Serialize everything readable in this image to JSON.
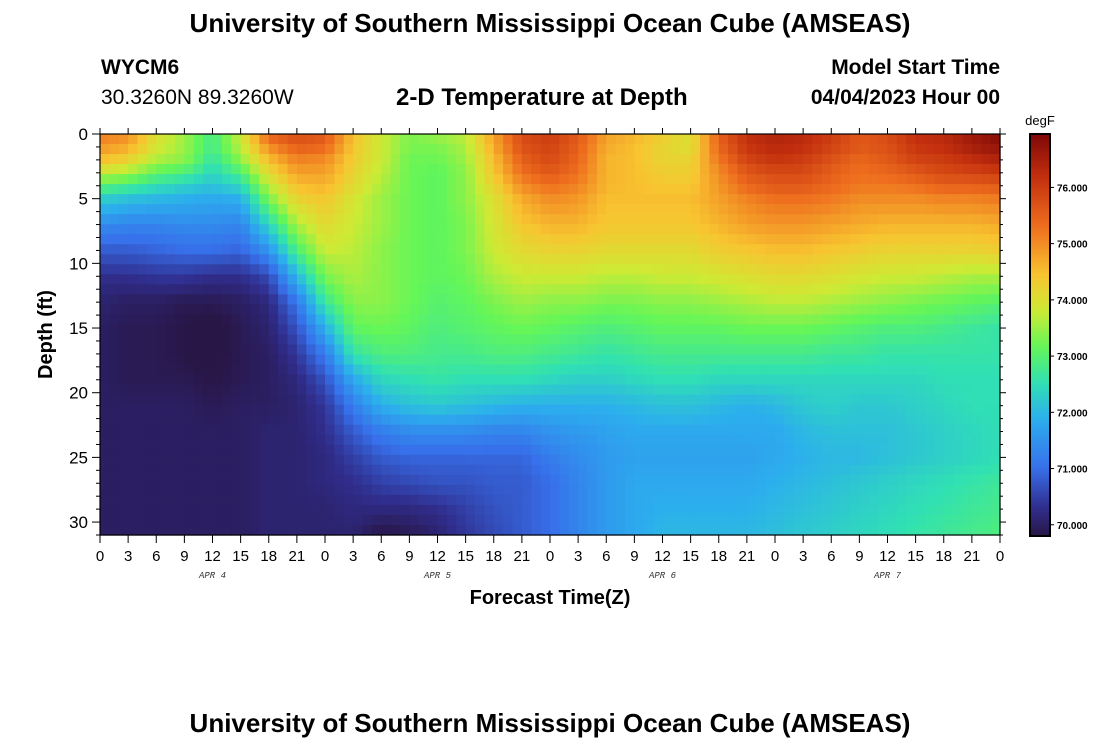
{
  "page": {
    "title_top": "University of Southern Mississippi Ocean Cube (AMSEAS)",
    "title_bottom": "University of Southern Mississippi Ocean Cube (AMSEAS)",
    "station_id": "WYCM6",
    "station_coords": "30.3260N  89.3260W",
    "subtitle": "2-D Temperature at Depth",
    "model_start_label": "Model Start Time",
    "model_start_value": "04/04/2023 Hour 00"
  },
  "chart_data": {
    "type": "heatmap",
    "title": "2-D Temperature at Depth",
    "xlabel": "Forecast Time(Z)",
    "ylabel": "Depth (ft)",
    "x_hours_range": [
      0,
      96
    ],
    "x_tick_labels": [
      "0",
      "3",
      "6",
      "9",
      "12",
      "15",
      "18",
      "21",
      "0",
      "3",
      "6",
      "9",
      "12",
      "15",
      "18",
      "21",
      "0",
      "3",
      "6",
      "9",
      "12",
      "15",
      "18",
      "21",
      "0",
      "3",
      "6",
      "9",
      "12",
      "15",
      "18",
      "21",
      "0"
    ],
    "day_labels": [
      "APR 4",
      "APR 5",
      "APR 6",
      "APR 7"
    ],
    "ylim": [
      0,
      31
    ],
    "y_ticks": [
      0,
      5,
      10,
      15,
      20,
      25,
      30
    ],
    "colorbar": {
      "unit": "degF",
      "range": [
        69.8,
        76.95
      ],
      "ticks": [
        "70.000",
        "71.000",
        "72.000",
        "73.000",
        "74.000",
        "75.000",
        "76.000"
      ]
    },
    "depths": [
      0,
      1,
      2,
      3,
      4,
      5,
      7,
      9,
      11,
      13,
      15,
      17,
      19,
      21,
      23,
      25,
      27,
      29,
      31
    ],
    "hours": [
      0,
      3,
      6,
      9,
      12,
      15,
      18,
      21,
      24,
      27,
      30,
      33,
      36,
      39,
      42,
      45,
      48,
      51,
      54,
      57,
      60,
      63,
      66,
      69,
      72,
      75,
      78,
      81,
      84,
      87,
      90,
      93,
      96
    ],
    "temperature": [
      [
        75.2,
        75.0,
        74.0,
        73.5,
        72.8,
        73.8,
        75.5,
        75.8,
        75.6,
        74.5,
        73.8,
        73.3,
        73.5,
        73.7,
        74.8,
        75.8,
        76.0,
        75.6,
        74.8,
        74.6,
        74.3,
        74.0,
        75.5,
        76.2,
        76.4,
        76.3,
        76.0,
        75.6,
        75.8,
        76.2,
        76.3,
        76.6,
        76.9
      ],
      [
        74.9,
        74.7,
        73.9,
        73.5,
        72.8,
        73.7,
        75.0,
        75.5,
        75.4,
        74.4,
        73.8,
        73.3,
        73.3,
        73.6,
        74.7,
        75.7,
        75.9,
        75.5,
        74.7,
        74.5,
        74.2,
        74.0,
        75.4,
        76.1,
        76.3,
        76.2,
        75.9,
        75.6,
        75.7,
        76.1,
        76.2,
        76.5,
        76.7
      ],
      [
        74.5,
        74.2,
        73.6,
        73.4,
        72.6,
        73.4,
        74.5,
        75.1,
        75.0,
        74.3,
        73.8,
        73.2,
        73.2,
        73.5,
        74.5,
        75.5,
        75.8,
        75.4,
        74.6,
        74.5,
        74.2,
        74.2,
        75.2,
        75.9,
        76.1,
        76.0,
        75.7,
        75.4,
        75.6,
        75.9,
        76.0,
        76.2,
        76.4
      ],
      [
        73.8,
        73.6,
        73.1,
        72.9,
        72.4,
        72.9,
        74.1,
        74.8,
        74.8,
        74.2,
        73.7,
        73.2,
        73.1,
        73.4,
        74.4,
        75.3,
        75.6,
        75.3,
        74.6,
        74.5,
        74.3,
        74.3,
        75.0,
        75.6,
        75.8,
        75.8,
        75.5,
        75.3,
        75.4,
        75.6,
        75.8,
        75.9,
        76.0
      ],
      [
        73.0,
        72.8,
        72.5,
        72.3,
        72.1,
        72.4,
        73.7,
        74.5,
        74.6,
        74.1,
        73.6,
        73.2,
        73.1,
        73.4,
        74.2,
        75.0,
        75.3,
        75.1,
        74.6,
        74.5,
        74.4,
        74.4,
        74.9,
        75.4,
        75.6,
        75.6,
        75.4,
        75.2,
        75.2,
        75.3,
        75.5,
        75.5,
        75.6
      ],
      [
        72.3,
        72.1,
        72.0,
        71.9,
        71.8,
        71.9,
        73.3,
        74.2,
        74.4,
        73.9,
        73.5,
        73.2,
        73.1,
        73.4,
        74.0,
        74.7,
        75.0,
        74.9,
        74.5,
        74.5,
        74.5,
        74.5,
        74.8,
        75.1,
        75.3,
        75.3,
        75.2,
        75.0,
        75.0,
        75.0,
        75.1,
        75.1,
        75.2
      ],
      [
        71.4,
        71.3,
        71.3,
        71.4,
        71.4,
        71.3,
        72.4,
        73.6,
        74.1,
        73.8,
        73.5,
        73.2,
        73.1,
        73.3,
        73.9,
        74.4,
        74.6,
        74.6,
        74.4,
        74.4,
        74.4,
        74.4,
        74.6,
        74.8,
        74.9,
        74.9,
        74.8,
        74.7,
        74.6,
        74.6,
        74.6,
        74.6,
        74.7
      ],
      [
        70.8,
        70.8,
        70.9,
        71.0,
        71.0,
        70.9,
        71.5,
        72.9,
        73.8,
        73.7,
        73.4,
        73.2,
        73.1,
        73.3,
        73.8,
        74.1,
        74.2,
        74.2,
        74.1,
        74.1,
        74.1,
        74.1,
        74.3,
        74.4,
        74.5,
        74.5,
        74.4,
        74.3,
        74.2,
        74.2,
        74.2,
        74.2,
        74.3
      ],
      [
        70.3,
        70.3,
        70.4,
        70.4,
        70.3,
        70.3,
        70.6,
        72.0,
        73.3,
        73.6,
        73.4,
        73.2,
        73.1,
        73.2,
        73.6,
        73.8,
        73.8,
        73.8,
        73.7,
        73.7,
        73.8,
        73.8,
        73.9,
        74.0,
        74.1,
        74.1,
        74.0,
        73.9,
        73.8,
        73.8,
        73.7,
        73.6,
        73.6
      ],
      [
        70.1,
        70.0,
        70.0,
        69.9,
        69.9,
        70.0,
        70.2,
        71.1,
        72.7,
        73.4,
        73.4,
        73.2,
        73.0,
        73.1,
        73.3,
        73.5,
        73.4,
        73.4,
        73.3,
        73.3,
        73.4,
        73.4,
        73.5,
        73.6,
        73.7,
        73.7,
        73.6,
        73.5,
        73.4,
        73.3,
        73.2,
        73.1,
        73.0
      ],
      [
        70.0,
        69.9,
        69.9,
        69.8,
        69.7,
        69.9,
        70.1,
        70.7,
        71.9,
        73.1,
        73.2,
        73.1,
        72.9,
        73.0,
        73.1,
        73.2,
        73.1,
        73.0,
        72.9,
        73.0,
        73.1,
        73.1,
        73.1,
        73.2,
        73.2,
        73.2,
        73.1,
        73.0,
        72.9,
        72.9,
        72.8,
        72.7,
        72.6
      ],
      [
        70.0,
        69.9,
        69.9,
        69.8,
        69.7,
        69.9,
        70.0,
        70.4,
        71.2,
        72.6,
        72.9,
        72.9,
        72.8,
        72.8,
        72.9,
        72.9,
        72.8,
        72.7,
        72.6,
        72.7,
        72.8,
        72.8,
        72.8,
        72.8,
        72.8,
        72.8,
        72.7,
        72.7,
        72.6,
        72.6,
        72.6,
        72.6,
        72.6
      ],
      [
        70.0,
        69.9,
        69.9,
        69.9,
        69.8,
        69.9,
        70.0,
        70.2,
        70.7,
        71.8,
        72.4,
        72.5,
        72.6,
        72.5,
        72.5,
        72.5,
        72.4,
        72.3,
        72.3,
        72.4,
        72.5,
        72.5,
        72.4,
        72.4,
        72.4,
        72.4,
        72.4,
        72.4,
        72.4,
        72.4,
        72.5,
        72.5,
        72.5
      ],
      [
        70.0,
        70.0,
        70.0,
        70.0,
        69.9,
        70.0,
        70.0,
        70.1,
        70.4,
        71.2,
        71.9,
        72.1,
        72.2,
        72.1,
        72.0,
        71.9,
        71.9,
        71.9,
        71.9,
        72.0,
        72.1,
        72.1,
        72.0,
        71.9,
        72.0,
        72.2,
        72.3,
        72.2,
        72.2,
        72.3,
        72.4,
        72.5,
        72.5
      ],
      [
        70.0,
        70.0,
        70.0,
        70.0,
        70.0,
        70.0,
        70.1,
        70.1,
        70.3,
        70.8,
        71.2,
        71.4,
        71.4,
        71.4,
        71.3,
        71.3,
        71.5,
        71.6,
        71.7,
        71.8,
        71.8,
        71.8,
        71.8,
        71.8,
        71.8,
        72.0,
        72.1,
        72.1,
        72.1,
        72.2,
        72.3,
        72.4,
        72.5
      ],
      [
        70.0,
        70.0,
        70.0,
        70.0,
        70.0,
        70.0,
        70.1,
        70.1,
        70.2,
        70.5,
        70.8,
        70.9,
        70.9,
        70.9,
        70.9,
        70.9,
        71.2,
        71.4,
        71.6,
        71.7,
        71.7,
        71.7,
        71.7,
        71.7,
        71.8,
        71.9,
        72.0,
        72.0,
        72.1,
        72.2,
        72.3,
        72.4,
        72.5
      ],
      [
        70.0,
        70.0,
        70.0,
        70.0,
        70.0,
        70.0,
        70.1,
        70.1,
        70.2,
        70.3,
        70.5,
        70.6,
        70.7,
        70.7,
        70.8,
        70.8,
        71.0,
        71.3,
        71.6,
        71.8,
        71.8,
        71.8,
        71.8,
        71.8,
        71.9,
        72.0,
        72.1,
        72.2,
        72.3,
        72.4,
        72.5,
        72.6,
        72.7
      ],
      [
        70.0,
        70.0,
        70.0,
        70.0,
        70.0,
        70.0,
        70.1,
        70.1,
        70.1,
        70.2,
        70.2,
        70.2,
        70.3,
        70.5,
        70.7,
        70.8,
        71.0,
        71.3,
        71.6,
        71.8,
        71.9,
        71.9,
        71.9,
        71.9,
        72.0,
        72.1,
        72.2,
        72.3,
        72.4,
        72.5,
        72.6,
        72.7,
        72.8
      ],
      [
        70.0,
        70.0,
        70.0,
        70.0,
        70.0,
        70.0,
        70.1,
        70.1,
        70.1,
        70.1,
        69.8,
        69.9,
        70.1,
        70.4,
        70.6,
        70.8,
        71.0,
        71.3,
        71.6,
        71.8,
        72.0,
        72.0,
        72.0,
        72.0,
        72.1,
        72.2,
        72.3,
        72.4,
        72.5,
        72.6,
        72.7,
        72.8,
        72.9
      ]
    ]
  }
}
